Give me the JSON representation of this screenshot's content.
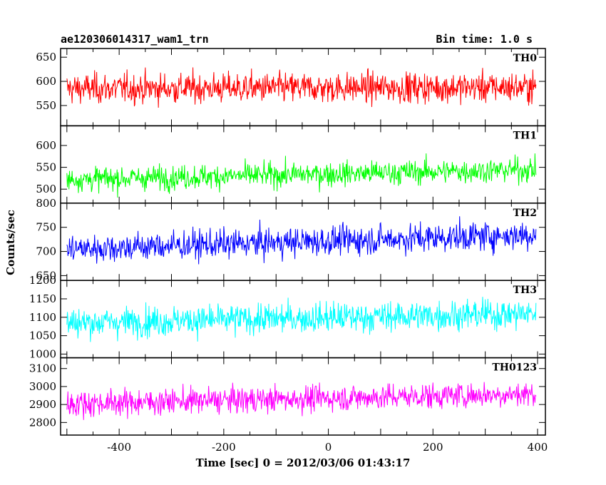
{
  "header": {
    "title": "ae120306014317_wam1_trn",
    "bin_time": "Bin time: 1.0 s"
  },
  "chart_data": {
    "type": "line",
    "xlabel": "Time [sec] 0 = 2012/03/06 01:43:17",
    "ylabel": "Counts/sec",
    "xlim": [
      -512,
      415
    ],
    "x_ticks": [
      -400,
      -200,
      0,
      200,
      400
    ],
    "x_range": [
      -500,
      397
    ],
    "panels": [
      {
        "name": "TH0",
        "color": "#ff0000",
        "ylim": [
          508,
          668
        ],
        "y_ticks": [
          550,
          600,
          650
        ],
        "mean_start": 585,
        "mean_end": 588,
        "noise": 26
      },
      {
        "name": "TH1",
        "color": "#00ff00",
        "ylim": [
          468,
          645
        ],
        "y_ticks": [
          500,
          550,
          600
        ],
        "mean_start": 522,
        "mean_end": 545,
        "noise": 23
      },
      {
        "name": "TH2",
        "color": "#0000ff",
        "ylim": [
          640,
          800
        ],
        "y_ticks": [
          650,
          700,
          750,
          800
        ],
        "mean_start": 705,
        "mean_end": 735,
        "noise": 25
      },
      {
        "name": "TH3",
        "color": "#00ffff",
        "ylim": [
          990,
          1200
        ],
        "y_ticks": [
          1000,
          1050,
          1100,
          1150,
          1200
        ],
        "mean_start": 1085,
        "mean_end": 1110,
        "noise": 34
      },
      {
        "name": "TH0123",
        "color": "#ff00ff",
        "ylim": [
          2730,
          3160
        ],
        "y_ticks": [
          2800,
          2900,
          3000,
          3100
        ],
        "mean_start": 2905,
        "mean_end": 2960,
        "noise": 60
      }
    ]
  }
}
